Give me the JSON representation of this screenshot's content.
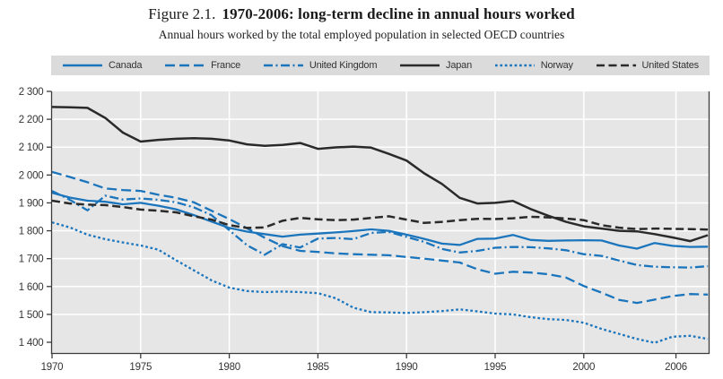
{
  "figure": {
    "label": "Figure 2.1.",
    "title": "1970-2006: long-term decline in annual hours worked",
    "subtitle": "Annual hours worked by the total employed population in selected OECD countries"
  },
  "colors": {
    "series_blue": "#1b75bc",
    "series_black": "#2a2a2a",
    "plot_background": "#e6e6e6",
    "legend_background": "#dbdbdb",
    "gridline": "#ffffff",
    "axis": "#3c3c3c",
    "tick_text": "#333333"
  },
  "chart_data": {
    "type": "line",
    "title": "Figure 2.1. 1970-2006: long-term decline in annual hours worked",
    "subtitle": "Annual hours worked by the total employed population in selected OECD countries",
    "xlabel": "",
    "ylabel": "",
    "x_range": [
      1970,
      2007
    ],
    "ylim": [
      1400,
      2300
    ],
    "grid": true,
    "legend_position": "top",
    "x": [
      1970,
      1971,
      1972,
      1973,
      1974,
      1975,
      1976,
      1977,
      1978,
      1979,
      1980,
      1981,
      1982,
      1983,
      1984,
      1985,
      1986,
      1987,
      1988,
      1989,
      1990,
      1991,
      1992,
      1993,
      1994,
      1995,
      1996,
      1997,
      1998,
      1999,
      2000,
      2001,
      2002,
      2003,
      2004,
      2005,
      2006,
      2007
    ],
    "xticks": [
      {
        "label": "1970"
      },
      {
        "label": "1975"
      },
      {
        "label": "1980"
      },
      {
        "label": "1985"
      },
      {
        "label": "1990"
      },
      {
        "label": "1995"
      },
      {
        "label": "2000"
      },
      {
        "label": "2006"
      }
    ],
    "yticks": [
      {
        "value": 1400,
        "label": "1 400"
      },
      {
        "value": 1500,
        "label": "1 500"
      },
      {
        "value": 1600,
        "label": "1 600"
      },
      {
        "value": 1700,
        "label": "1 700"
      },
      {
        "value": 1800,
        "label": "1 800"
      },
      {
        "value": 1900,
        "label": "1 900"
      },
      {
        "value": 2000,
        "label": "2 000"
      },
      {
        "value": 2100,
        "label": "2 100"
      },
      {
        "value": 2200,
        "label": "2 200"
      },
      {
        "value": 2300,
        "label": "2 300"
      }
    ],
    "series": [
      {
        "name": "Canada",
        "color": "#1b75bc",
        "style": "solid",
        "values": [
          1936,
          1919,
          1908,
          1904,
          1895,
          1900,
          1890,
          1877,
          1856,
          1833,
          1810,
          1797,
          1788,
          1779,
          1786,
          1790,
          1794,
          1799,
          1805,
          1800,
          1786,
          1771,
          1754,
          1749,
          1771,
          1772,
          1785,
          1767,
          1764,
          1765,
          1766,
          1765,
          1747,
          1736,
          1756,
          1746,
          1742,
          1743
        ]
      },
      {
        "name": "France",
        "color": "#1b75bc",
        "style": "long-dash",
        "values": [
          2011,
          1993,
          1974,
          1952,
          1946,
          1943,
          1929,
          1918,
          1902,
          1872,
          1842,
          1809,
          1775,
          1745,
          1728,
          1724,
          1719,
          1716,
          1714,
          1712,
          1706,
          1700,
          1693,
          1686,
          1662,
          1646,
          1653,
          1650,
          1644,
          1632,
          1602,
          1578,
          1552,
          1541,
          1553,
          1566,
          1573,
          1571
        ]
      },
      {
        "name": "United Kingdom",
        "color": "#1b75bc",
        "style": "dash-dot",
        "values": [
          1943,
          1911,
          1873,
          1926,
          1912,
          1916,
          1911,
          1902,
          1884,
          1856,
          1802,
          1748,
          1714,
          1752,
          1740,
          1772,
          1774,
          1770,
          1792,
          1796,
          1778,
          1760,
          1735,
          1722,
          1728,
          1739,
          1742,
          1741,
          1737,
          1730,
          1716,
          1710,
          1693,
          1677,
          1671,
          1669,
          1668,
          1673
        ]
      },
      {
        "name": "Japan",
        "color": "#2a2a2a",
        "style": "solid",
        "values": [
          2244,
          2243,
          2241,
          2205,
          2152,
          2120,
          2126,
          2130,
          2132,
          2130,
          2124,
          2110,
          2105,
          2108,
          2115,
          2094,
          2099,
          2102,
          2098,
          2076,
          2052,
          2006,
          1968,
          1918,
          1898,
          1900,
          1907,
          1878,
          1854,
          1832,
          1816,
          1808,
          1800,
          1798,
          1788,
          1776,
          1763,
          1784
        ]
      },
      {
        "name": "Norway",
        "color": "#1b75bc",
        "style": "dotted",
        "values": [
          1830,
          1812,
          1786,
          1770,
          1758,
          1747,
          1732,
          1694,
          1658,
          1622,
          1596,
          1584,
          1580,
          1582,
          1580,
          1576,
          1558,
          1524,
          1508,
          1507,
          1505,
          1508,
          1512,
          1518,
          1511,
          1503,
          1500,
          1490,
          1483,
          1480,
          1470,
          1448,
          1430,
          1412,
          1398,
          1420,
          1423,
          1412
        ]
      },
      {
        "name": "United States",
        "color": "#2a2a2a",
        "style": "dashed",
        "values": [
          1908,
          1898,
          1894,
          1892,
          1885,
          1876,
          1872,
          1866,
          1852,
          1840,
          1820,
          1810,
          1812,
          1836,
          1846,
          1841,
          1838,
          1840,
          1846,
          1852,
          1840,
          1828,
          1832,
          1838,
          1843,
          1842,
          1845,
          1850,
          1848,
          1844,
          1838,
          1820,
          1811,
          1806,
          1808,
          1807,
          1806,
          1804
        ]
      }
    ]
  }
}
